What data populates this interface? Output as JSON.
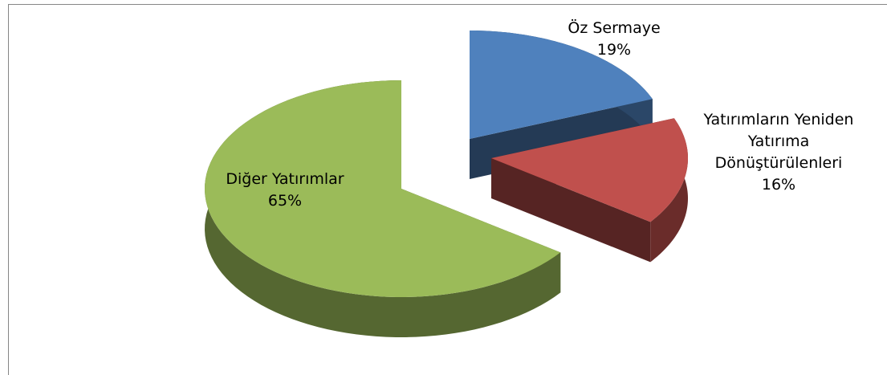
{
  "chart_data": {
    "type": "pie",
    "categories": [
      "Öz Sermaye",
      "Yatırımların Yeniden Yatırıma Dönüştürülenleri",
      "Diğer Yatırımlar"
    ],
    "values": [
      19,
      16,
      65
    ],
    "value_labels": [
      "19%",
      "16%",
      "65%"
    ],
    "colors": [
      "#4f81bd",
      "#c0504d",
      "#9bbb59"
    ]
  }
}
